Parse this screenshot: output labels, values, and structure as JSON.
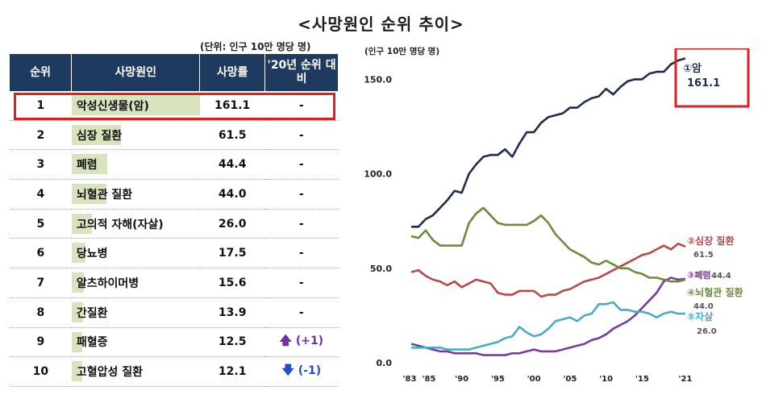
{
  "title": "<사망원인 순위 추이>",
  "table": {
    "unit": "(단위: 인구 10만 명당 명)",
    "headers": {
      "rank": "순위",
      "cause": "사망원인",
      "rate": "사망률",
      "change": "'20년 순위 대비"
    },
    "rows": [
      {
        "rank": "1",
        "cause": "악성신생물(암)",
        "rate": "161.1",
        "change": "-",
        "value": 161.1
      },
      {
        "rank": "2",
        "cause": "심장 질환",
        "rate": "61.5",
        "change": "-",
        "value": 61.5
      },
      {
        "rank": "3",
        "cause": "폐렴",
        "rate": "44.4",
        "change": "-",
        "value": 44.4
      },
      {
        "rank": "4",
        "cause": "뇌혈관 질환",
        "rate": "44.0",
        "change": "-",
        "value": 44.0
      },
      {
        "rank": "5",
        "cause": "고의적 자해(자살)",
        "rate": "26.0",
        "change": "-",
        "value": 26.0
      },
      {
        "rank": "6",
        "cause": "당뇨병",
        "rate": "17.5",
        "change": "-",
        "value": 17.5
      },
      {
        "rank": "7",
        "cause": "알츠하이머병",
        "rate": "15.6",
        "change": "-",
        "value": 15.6
      },
      {
        "rank": "8",
        "cause": "간질환",
        "rate": "13.9",
        "change": "-",
        "value": 13.9
      },
      {
        "rank": "9",
        "cause": "패혈증",
        "rate": "12.5",
        "change": "(+1)",
        "direction": "up",
        "value": 12.5
      },
      {
        "rank": "10",
        "cause": "고혈압성 질환",
        "rate": "12.1",
        "change": "(-1)",
        "direction": "down",
        "value": 12.1
      }
    ],
    "colors": {
      "header": "#1f3a5f",
      "bar": "#d7e4bd",
      "highlight": "#e02020",
      "up": "#7030a0",
      "down": "#1f4fd0"
    }
  },
  "chart_data": {
    "type": "line",
    "ylabel": "(인구 10만 명당 명)",
    "ylim": [
      0,
      160
    ],
    "xlim": [
      1983,
      2021
    ],
    "yticks": [
      "0.0",
      "50.0",
      "100.0",
      "150.0"
    ],
    "xtick_labels": [
      "'83",
      "'85",
      "'90",
      "'95",
      "'00",
      "'05",
      "'10",
      "'15",
      "'21"
    ],
    "grid": false,
    "series": [
      {
        "name": "①암",
        "value_label": "161.1",
        "color": "#1f2d4d",
        "x": [
          1983,
          1984,
          1985,
          1986,
          1987,
          1988,
          1989,
          1990,
          1991,
          1992,
          1993,
          1994,
          1995,
          1996,
          1997,
          1998,
          1999,
          2000,
          2001,
          2002,
          2003,
          2004,
          2005,
          2006,
          2007,
          2008,
          2009,
          2010,
          2011,
          2012,
          2013,
          2014,
          2015,
          2016,
          2017,
          2018,
          2019,
          2020,
          2021
        ],
        "y": [
          72,
          72,
          76,
          78,
          82,
          86,
          91,
          90,
          100,
          105,
          109,
          110,
          110,
          113,
          109,
          116,
          122,
          122,
          127,
          130,
          131,
          132,
          135,
          135,
          138,
          140,
          141,
          145,
          142,
          146,
          149,
          150,
          150,
          153,
          154,
          154,
          158,
          160,
          161.1
        ]
      },
      {
        "name": "②심장 질환",
        "value_label": "61.5",
        "color": "#b8484a",
        "x": [
          1983,
          1984,
          1985,
          1986,
          1987,
          1988,
          1989,
          1990,
          1991,
          1992,
          1993,
          1994,
          1995,
          1996,
          1997,
          1998,
          1999,
          2000,
          2001,
          2002,
          2003,
          2004,
          2005,
          2006,
          2007,
          2008,
          2009,
          2010,
          2011,
          2012,
          2013,
          2014,
          2015,
          2016,
          2017,
          2018,
          2019,
          2020,
          2021
        ],
        "y": [
          48,
          49,
          46,
          44,
          43,
          41,
          43,
          40,
          42,
          44,
          43,
          42,
          37,
          36,
          36,
          38,
          38,
          38,
          35,
          36,
          36,
          38,
          39,
          41,
          43,
          44,
          45,
          47,
          49,
          51,
          53,
          55,
          57,
          58,
          60,
          62,
          60,
          63,
          61.5
        ]
      },
      {
        "name": "③폐렴",
        "value_label": "44.4",
        "color": "#7a3aa0",
        "x": [
          1983,
          1984,
          1985,
          1986,
          1987,
          1988,
          1989,
          1990,
          1991,
          1992,
          1993,
          1994,
          1995,
          1996,
          1997,
          1998,
          1999,
          2000,
          2001,
          2002,
          2003,
          2004,
          2005,
          2006,
          2007,
          2008,
          2009,
          2010,
          2011,
          2012,
          2013,
          2014,
          2015,
          2016,
          2017,
          2018,
          2019,
          2020,
          2021
        ],
        "y": [
          10,
          9,
          8,
          7,
          6,
          6,
          5,
          5,
          5,
          5,
          4,
          4,
          4,
          4,
          5,
          5,
          6,
          7,
          6,
          6,
          6,
          7,
          8,
          9,
          10,
          12,
          13,
          15,
          18,
          20,
          22,
          25,
          29,
          33,
          37,
          43,
          45,
          44,
          44.4
        ]
      },
      {
        "name": "④뇌혈관 질환",
        "value_label": "44.0",
        "color": "#6e8a3a",
        "x": [
          1983,
          1984,
          1985,
          1986,
          1987,
          1988,
          1989,
          1990,
          1991,
          1992,
          1993,
          1994,
          1995,
          1996,
          1997,
          1998,
          1999,
          2000,
          2001,
          2002,
          2003,
          2004,
          2005,
          2006,
          2007,
          2008,
          2009,
          2010,
          2011,
          2012,
          2013,
          2014,
          2015,
          2016,
          2017,
          2018,
          2019,
          2020,
          2021
        ],
        "y": [
          67,
          66,
          70,
          65,
          62,
          62,
          62,
          62,
          74,
          79,
          82,
          78,
          74,
          73,
          73,
          73,
          73,
          75,
          78,
          74,
          68,
          64,
          60,
          58,
          56,
          53,
          52,
          54,
          52,
          50,
          50,
          48,
          47,
          45,
          45,
          44,
          43,
          43,
          44.0
        ]
      },
      {
        "name": "⑤자살",
        "value_label": "26.0",
        "color": "#4aaac9",
        "x": [
          1983,
          1984,
          1985,
          1986,
          1987,
          1988,
          1989,
          1990,
          1991,
          1992,
          1993,
          1994,
          1995,
          1996,
          1997,
          1998,
          1999,
          2000,
          2001,
          2002,
          2003,
          2004,
          2005,
          2006,
          2007,
          2008,
          2009,
          2010,
          2011,
          2012,
          2013,
          2014,
          2015,
          2016,
          2017,
          2018,
          2019,
          2020,
          2021
        ],
        "y": [
          8,
          8,
          8,
          8,
          8,
          7,
          7,
          7,
          7,
          8,
          9,
          10,
          11,
          13,
          14,
          19,
          16,
          14,
          15,
          18,
          22,
          23,
          24,
          22,
          25,
          26,
          31,
          31,
          32,
          28,
          28,
          27,
          27,
          26,
          24,
          26,
          27,
          26,
          26.0
        ]
      }
    ]
  }
}
